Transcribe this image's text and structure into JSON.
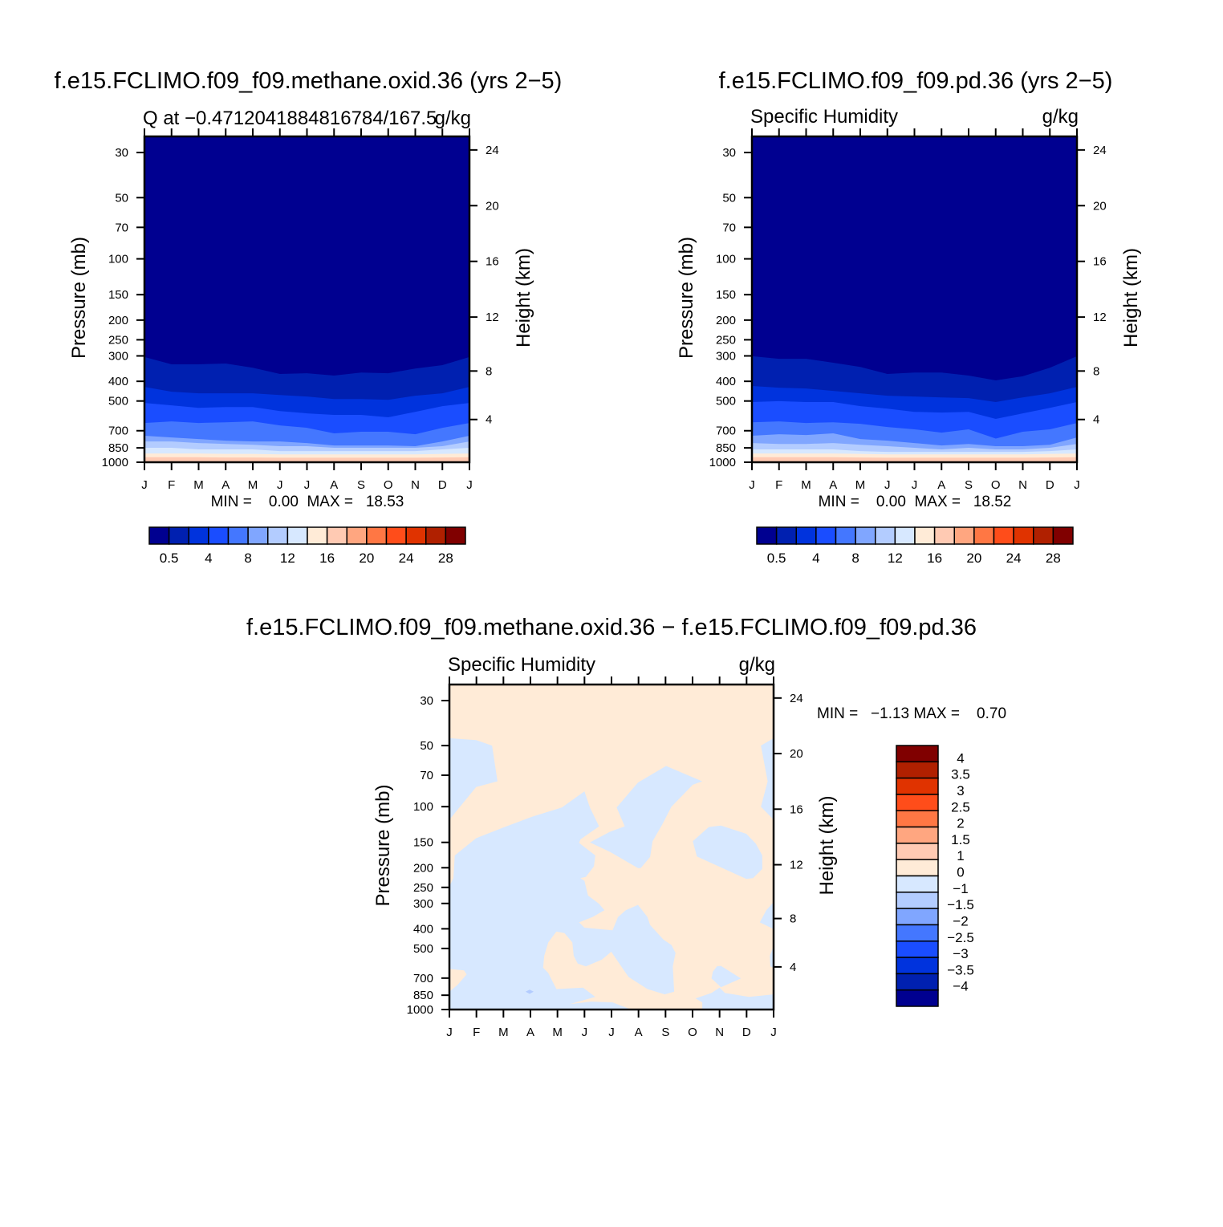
{
  "colors": [
    "#000090",
    "#0020b0",
    "#0033dd",
    "#1a4dff",
    "#4477ff",
    "#80a6ff",
    "#b3ccff",
    "#d7e8ff",
    "#ffebd7",
    "#ffcab3",
    "#ffa680",
    "#ff7744",
    "#ff4d1a",
    "#e03300",
    "#b02000",
    "#800000"
  ],
  "chart_data": [
    {
      "type": "heatmap",
      "title": "f.e15.FCLIMO.f09_f09.methane.oxid.36 (yrs 2−5)",
      "subtitle_left": "Q at −0.4712041884816784/167.5",
      "subtitle_right": "g/kg",
      "ylabel": "Pressure (mb)",
      "y2label": "Height (km)",
      "x_ticklabels": [
        "J",
        "F",
        "M",
        "A",
        "M",
        "J",
        "J",
        "A",
        "S",
        "O",
        "N",
        "D",
        "J"
      ],
      "y_ticks": [
        30,
        50,
        70,
        100,
        150,
        200,
        250,
        300,
        400,
        500,
        700,
        850,
        1000
      ],
      "y2_ticks": [
        4,
        8,
        12,
        16,
        20,
        24
      ],
      "ylim": [
        1000,
        25
      ],
      "y_scale": "log",
      "stats": "MIN =    0.00  MAX =   18.53",
      "colorbar": {
        "orientation": "horizontal",
        "labels": [
          "0.5",
          "4",
          "8",
          "12",
          "16",
          "20",
          "24",
          "28"
        ]
      },
      "contour_boundaries_mb": [
        [
          304,
          330,
          330,
          327,
          343,
          368,
          365,
          375,
          362,
          365,
          346,
          333,
          304
        ],
        [
          426,
          450,
          458,
          458,
          458,
          467,
          475,
          489,
          489,
          493,
          471,
          458,
          426
        ],
        [
          511,
          525,
          540,
          535,
          535,
          560,
          575,
          585,
          585,
          601,
          565,
          530,
          511
        ],
        [
          641,
          630,
          641,
          636,
          630,
          659,
          677,
          721,
          708,
          708,
          728,
          677,
          641
        ],
        [
          741,
          755,
          769,
          783,
          790,
          790,
          805,
          827,
          827,
          827,
          834,
          790,
          741
        ],
        [
          790,
          790,
          805,
          813,
          820,
          834,
          834,
          849,
          849,
          849,
          849,
          834,
          790
        ],
        [
          849,
          849,
          865,
          865,
          865,
          881,
          881,
          881,
          881,
          881,
          881,
          865,
          849
        ],
        [
          906,
          906,
          906,
          910,
          910,
          915,
          915,
          915,
          915,
          915,
          915,
          910,
          906
        ],
        [
          945,
          945,
          945,
          948,
          948,
          950,
          950,
          950,
          950,
          950,
          950,
          948,
          945
        ]
      ]
    },
    {
      "type": "heatmap",
      "title": "f.e15.FCLIMO.f09_f09.pd.36 (yrs 2−5)",
      "subtitle_left": "Specific Humidity",
      "subtitle_right": "g/kg",
      "ylabel": "Pressure (mb)",
      "y2label": "Height (km)",
      "x_ticklabels": [
        "J",
        "F",
        "M",
        "A",
        "M",
        "J",
        "J",
        "A",
        "S",
        "O",
        "N",
        "D",
        "J"
      ],
      "y_ticks": [
        30,
        50,
        70,
        100,
        150,
        200,
        250,
        300,
        400,
        500,
        700,
        850,
        1000
      ],
      "y2_ticks": [
        4,
        8,
        12,
        16,
        20,
        24
      ],
      "ylim": [
        1000,
        25
      ],
      "y_scale": "log",
      "stats": "MIN =    0.00  MAX =   18.52",
      "colorbar": {
        "orientation": "horizontal",
        "labels": [
          "0.5",
          "4",
          "8",
          "12",
          "16",
          "20",
          "24",
          "28"
        ]
      },
      "contour_boundaries_mb": [
        [
          301,
          310,
          310,
          324,
          340,
          368,
          362,
          362,
          375,
          396,
          378,
          343,
          301
        ],
        [
          422,
          430,
          434,
          446,
          458,
          471,
          475,
          480,
          484,
          506,
          480,
          458,
          426
        ],
        [
          506,
          501,
          506,
          506,
          530,
          545,
          565,
          570,
          565,
          612,
          575,
          540,
          506
        ],
        [
          636,
          630,
          641,
          636,
          647,
          671,
          689,
          715,
          689,
          765,
          708,
          689,
          641
        ],
        [
          741,
          728,
          735,
          721,
          769,
          783,
          805,
          827,
          813,
          834,
          834,
          820,
          755
        ],
        [
          805,
          813,
          813,
          805,
          820,
          834,
          849,
          865,
          849,
          865,
          865,
          849,
          813
        ],
        [
          865,
          865,
          865,
          865,
          881,
          889,
          889,
          889,
          889,
          889,
          889,
          881,
          865
        ],
        [
          906,
          906,
          906,
          906,
          910,
          915,
          915,
          915,
          915,
          915,
          915,
          910,
          906
        ],
        [
          945,
          945,
          945,
          945,
          948,
          950,
          950,
          950,
          950,
          950,
          950,
          948,
          945
        ]
      ]
    },
    {
      "type": "heatmap",
      "title": "f.e15.FCLIMO.f09_f09.methane.oxid.36 − f.e15.FCLIMO.f09_f09.pd.36",
      "subtitle_left": "Specific Humidity",
      "subtitle_right": "g/kg",
      "ylabel": "Pressure (mb)",
      "y2label": "Height (km)",
      "x_ticklabels": [
        "J",
        "F",
        "M",
        "A",
        "M",
        "J",
        "J",
        "A",
        "S",
        "O",
        "N",
        "D",
        "J"
      ],
      "y_ticks": [
        30,
        50,
        70,
        100,
        150,
        200,
        250,
        300,
        400,
        500,
        700,
        850,
        1000
      ],
      "y2_ticks": [
        4,
        8,
        12,
        16,
        20,
        24
      ],
      "ylim": [
        1000,
        25
      ],
      "y_scale": "log",
      "stats": "MIN =   −1.13 MAX =    0.70",
      "colorbar": {
        "orientation": "vertical",
        "labels": [
          "4",
          "3.5",
          "3",
          "2.5",
          "2",
          "1.5",
          "1",
          "0",
          "−1",
          "−1.5",
          "−2",
          "−2.5",
          "−3",
          "−3.5",
          "−4"
        ]
      },
      "background_color_index": 8,
      "regions": [
        {
          "color_index": 7,
          "polygon_month_mb": [
            [
              0,
              46
            ],
            [
              0.99,
              47
            ],
            [
              1.58,
              50
            ],
            [
              1.78,
              75
            ],
            [
              0.99,
              80
            ],
            [
              0,
              116
            ]
          ]
        },
        {
          "color_index": 7,
          "polygon_month_mb": [
            [
              0.2,
              174
            ],
            [
              0.99,
              143
            ],
            [
              1.98,
              127
            ],
            [
              3.07,
              112
            ],
            [
              4.16,
              101
            ],
            [
              5.0,
              84
            ],
            [
              5.2,
              101
            ],
            [
              5.54,
              125
            ],
            [
              4.85,
              145
            ],
            [
              4.8,
              151
            ],
            [
              5.4,
              174
            ],
            [
              5.35,
              197
            ],
            [
              5.05,
              222
            ],
            [
              4.85,
              225
            ],
            [
              5.0,
              232
            ],
            [
              5.13,
              274
            ],
            [
              5.54,
              301
            ],
            [
              5.74,
              324
            ],
            [
              5.3,
              350
            ],
            [
              4.8,
              372
            ],
            [
              5.0,
              395
            ],
            [
              6.04,
              407
            ],
            [
              6.24,
              350
            ],
            [
              6.53,
              324
            ],
            [
              6.98,
              305
            ],
            [
              7.33,
              350
            ],
            [
              7.43,
              383
            ],
            [
              7.92,
              452
            ],
            [
              8.22,
              481
            ],
            [
              8.37,
              526
            ],
            [
              8.27,
              613
            ],
            [
              8.32,
              817
            ],
            [
              7.97,
              842
            ],
            [
              7.33,
              793
            ],
            [
              6.63,
              691
            ],
            [
              5.99,
              519
            ],
            [
              5.64,
              568
            ],
            [
              5.05,
              613
            ],
            [
              4.75,
              594
            ],
            [
              4.6,
              543
            ],
            [
              4.55,
              467
            ],
            [
              4.26,
              420
            ],
            [
              3.96,
              413
            ],
            [
              3.66,
              467
            ],
            [
              3.51,
              543
            ],
            [
              3.47,
              622
            ],
            [
              3.66,
              661
            ],
            [
              3.96,
              793
            ],
            [
              4.95,
              780
            ],
            [
              5.4,
              867
            ],
            [
              4.46,
              941
            ],
            [
              5.25,
              914
            ],
            [
              6.04,
              922
            ],
            [
              6.73,
              1000
            ],
            [
              0,
              1000
            ],
            [
              0,
              817
            ],
            [
              0.3,
              757
            ],
            [
              0.64,
              671
            ],
            [
              0.54,
              641
            ],
            [
              0,
              631
            ],
            [
              0,
              247
            ],
            [
              0.15,
              225
            ]
          ]
        },
        {
          "color_index": 7,
          "polygon_month_mb": [
            [
              5.2,
              150
            ],
            [
              5.94,
              133
            ],
            [
              6.49,
              125
            ],
            [
              6.19,
              101
            ],
            [
              6.98,
              76
            ],
            [
              8.02,
              63
            ],
            [
              9.36,
              75
            ],
            [
              9.01,
              78
            ],
            [
              8.22,
              100
            ],
            [
              7.87,
              123
            ],
            [
              7.52,
              148
            ],
            [
              7.43,
              177
            ],
            [
              7.08,
              201
            ],
            [
              6.98,
              201
            ],
            [
              5.94,
              167
            ]
          ]
        },
        {
          "color_index": 7,
          "polygon_month_mb": [
            [
              9.01,
              148
            ],
            [
              9.6,
              126
            ],
            [
              10.05,
              124
            ],
            [
              10.99,
              136
            ],
            [
              11.34,
              152
            ],
            [
              11.58,
              174
            ],
            [
              11.58,
              203
            ],
            [
              11.24,
              225
            ],
            [
              10.99,
              227
            ],
            [
              9.16,
              176
            ]
          ]
        },
        {
          "color_index": 7,
          "polygon_month_mb": [
            [
              12,
              46
            ],
            [
              11.53,
              50
            ],
            [
              11.78,
              75
            ],
            [
              11.53,
              100
            ],
            [
              12,
              116
            ]
          ]
        },
        {
          "color_index": 7,
          "polygon_month_mb": [
            [
              12,
              296
            ],
            [
              11.73,
              324
            ],
            [
              11.49,
              372
            ],
            [
              12,
              401
            ]
          ]
        },
        {
          "color_index": 7,
          "polygon_month_mb": [
            [
              12,
              488
            ],
            [
              11.86,
              543
            ],
            [
              11.88,
              613
            ],
            [
              12,
              622
            ]
          ]
        },
        {
          "color_index": 7,
          "polygon_month_mb": [
            [
              9.75,
              651
            ],
            [
              9.9,
              613
            ],
            [
              10.05,
              609
            ],
            [
              10.79,
              702
            ],
            [
              10.05,
              776
            ],
            [
              9.7,
              702
            ]
          ]
        },
        {
          "color_index": 7,
          "polygon_month_mb": [
            [
              9.11,
              881
            ],
            [
              9.7,
              829
            ],
            [
              10.0,
              780
            ],
            [
              10.2,
              829
            ],
            [
              11.09,
              867
            ],
            [
              12,
              842
            ],
            [
              12,
              1000
            ],
            [
              9.36,
              1000
            ],
            [
              9.36,
              922
            ]
          ]
        },
        {
          "color_index": 6,
          "polygon_month_mb": [
            [
              2.82,
              817
            ],
            [
              2.97,
              798
            ],
            [
              3.12,
              817
            ],
            [
              2.97,
              837
            ]
          ]
        }
      ]
    }
  ]
}
